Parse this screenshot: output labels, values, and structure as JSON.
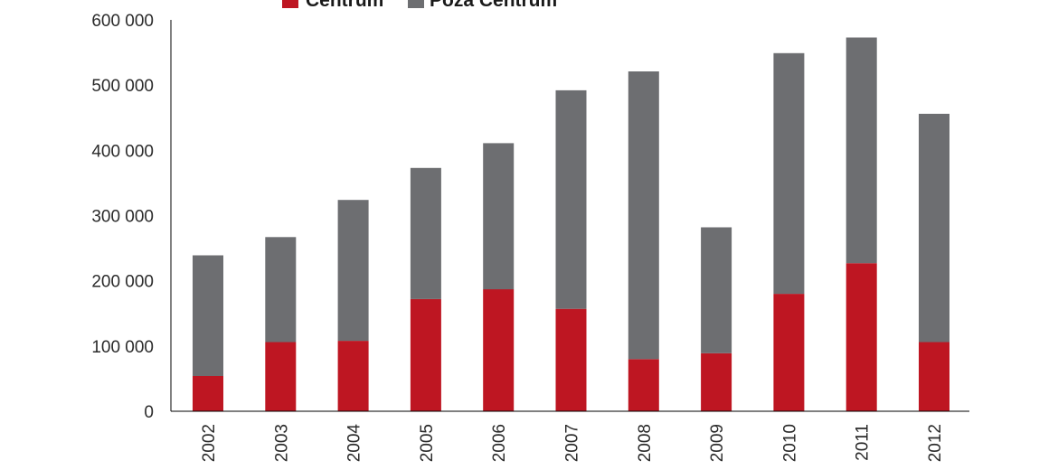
{
  "chart_data": {
    "type": "bar",
    "stacked": true,
    "categories": [
      "2002",
      "2003",
      "2004",
      "2005",
      "2006",
      "2007",
      "2008",
      "2009",
      "2010",
      "2011",
      "2012"
    ],
    "series": [
      {
        "name": "Centrum",
        "color": "#be1622",
        "values": [
          54000,
          106000,
          108000,
          172000,
          187000,
          157000,
          80000,
          89000,
          180000,
          227000,
          106000
        ]
      },
      {
        "name": "Poza Centrum",
        "color": "#6d6e71",
        "values": [
          185000,
          161000,
          216000,
          201000,
          224000,
          335000,
          441000,
          193000,
          369000,
          346000,
          350000
        ]
      }
    ],
    "yticks": [
      "0",
      "100 000",
      "200 000",
      "300 000",
      "400 000",
      "500 000",
      "600 000"
    ],
    "ylim": [
      0,
      600000
    ],
    "legend_position": "top",
    "grid": false
  }
}
